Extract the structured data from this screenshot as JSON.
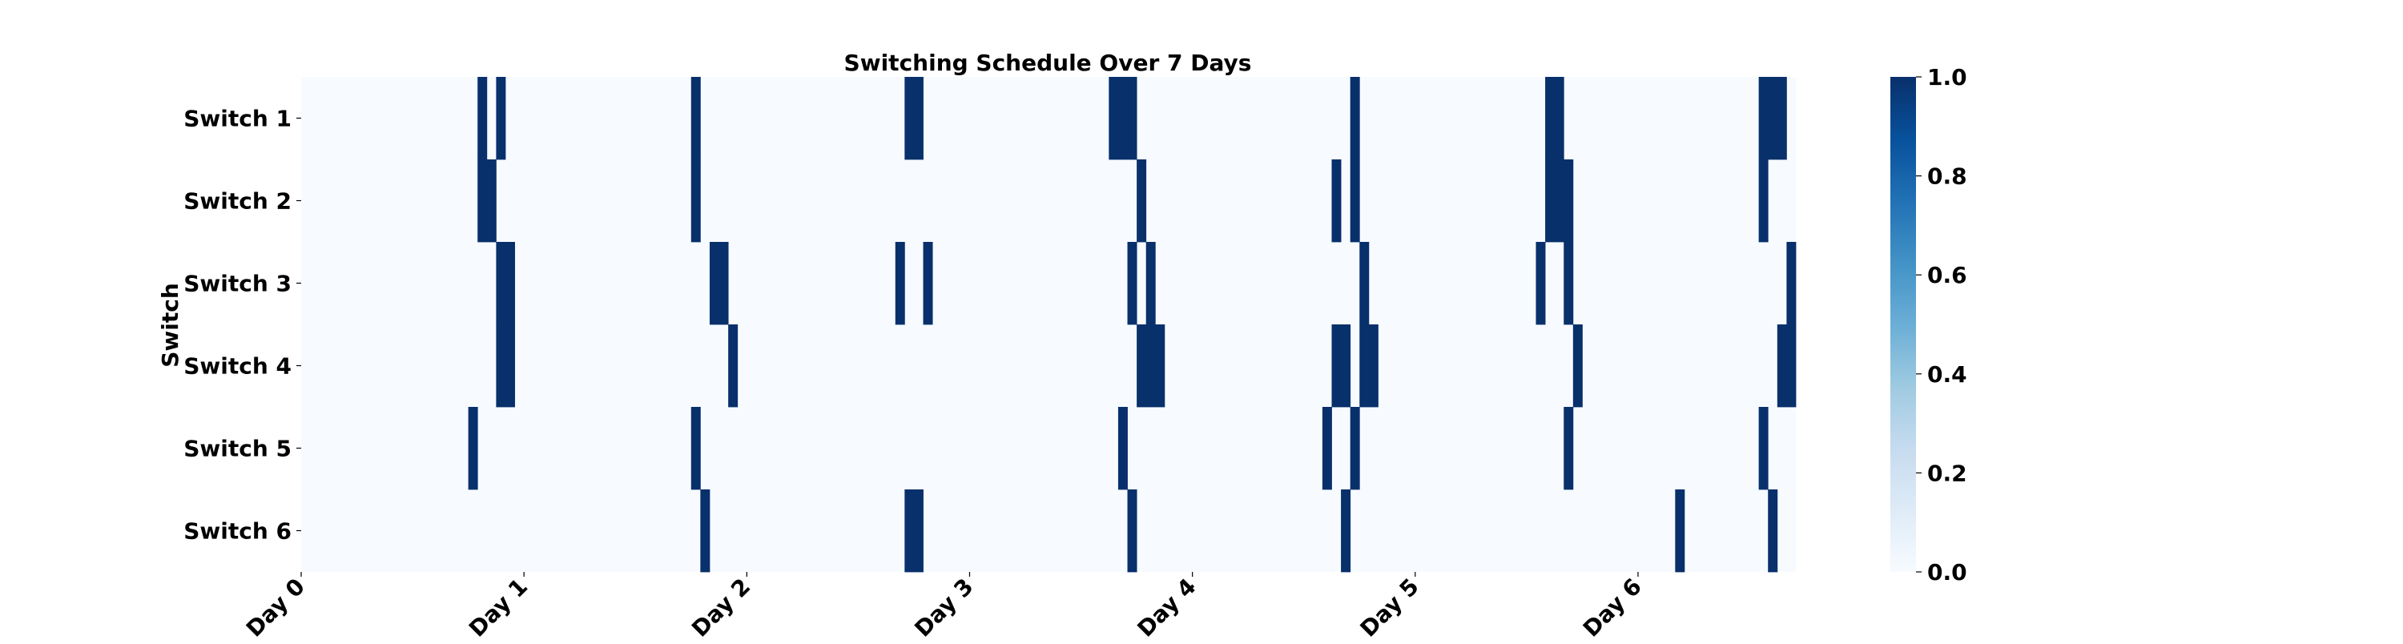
{
  "chart_data": {
    "type": "heatmap",
    "title": "Switching Schedule Over 7 Days",
    "xlabel": "",
    "ylabel": "Switch",
    "rows": [
      "Switch 1",
      "Switch 2",
      "Switch 3",
      "Switch 4",
      "Switch 5",
      "Switch 6"
    ],
    "x_tick_labels": [
      "Day 0",
      "Day 1",
      "Day 2",
      "Day 3",
      "Day 4",
      "Day 5",
      "Day 6"
    ],
    "x_tick_hours": [
      0,
      24,
      48,
      72,
      96,
      120,
      144
    ],
    "hours_total": 161,
    "colorbar": {
      "min": 0.0,
      "max": 1.0,
      "ticks": [
        "0.0",
        "0.2",
        "0.4",
        "0.6",
        "0.8",
        "1.0"
      ],
      "colormap": "Blues",
      "low_color": "#f7fbff",
      "high_color": "#08306b"
    },
    "on_hours": [
      [
        19,
        21,
        42,
        65,
        66,
        87,
        88,
        89,
        113,
        134,
        135,
        157,
        158,
        159
      ],
      [
        19,
        20,
        42,
        90,
        111,
        113,
        134,
        135,
        136,
        157
      ],
      [
        21,
        22,
        44,
        45,
        64,
        67,
        89,
        91,
        114,
        133,
        136,
        160
      ],
      [
        21,
        22,
        46,
        90,
        91,
        92,
        111,
        112,
        114,
        115,
        137,
        159,
        160
      ],
      [
        18,
        42,
        88,
        110,
        113,
        136,
        157
      ],
      [
        43,
        65,
        66,
        89,
        112,
        148,
        158
      ]
    ]
  }
}
